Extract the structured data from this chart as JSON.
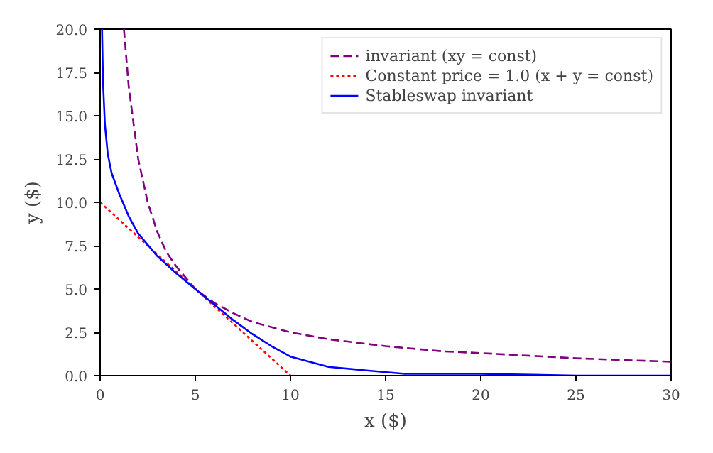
{
  "chart_data": {
    "type": "line",
    "xlabel": "x ($)",
    "ylabel": "y ($)",
    "xlim": [
      0,
      30
    ],
    "ylim": [
      0,
      20
    ],
    "xticks": [
      0,
      5,
      10,
      15,
      20,
      25,
      30
    ],
    "yticks": [
      {
        "value": 0,
        "label": "0.0"
      },
      {
        "value": 2.5,
        "label": "2.5"
      },
      {
        "value": 5,
        "label": "5.0"
      },
      {
        "value": 7.5,
        "label": "7.5"
      },
      {
        "value": 10,
        "label": "10.0"
      },
      {
        "value": 12.5,
        "label": "12.5"
      },
      {
        "value": 15,
        "label": "15.0"
      },
      {
        "value": 17.5,
        "label": "17.5"
      },
      {
        "value": 20,
        "label": "20.0"
      }
    ],
    "grid": false,
    "legend": "top right",
    "marker": "none",
    "series": [
      {
        "name": "invariant (xy = const)",
        "color": "#800080",
        "line_style": "dashed",
        "x": [
          1.25,
          1.5,
          2,
          2.5,
          3,
          3.5,
          4,
          5,
          6,
          7,
          8,
          10,
          12,
          15,
          18,
          20,
          25,
          30
        ],
        "values": [
          20,
          16.7,
          12.5,
          10,
          8.3,
          7.1,
          6.3,
          5,
          4.2,
          3.6,
          3.1,
          2.5,
          2.1,
          1.7,
          1.4,
          1.3,
          1,
          0.8
        ]
      },
      {
        "name": "Constant price = 1.0 (x + y = const)",
        "color": "#ff0000",
        "line_style": "dotted",
        "x": [
          0,
          10
        ],
        "values": [
          10,
          0
        ]
      },
      {
        "name": "Stableswap invariant",
        "color": "#0000ff",
        "line_style": "solid",
        "x": [
          0.1,
          0.15,
          0.25,
          0.4,
          0.6,
          1,
          1.5,
          2,
          3,
          4,
          5,
          6,
          7,
          8,
          9,
          10,
          11,
          12,
          14,
          16,
          20,
          25,
          30
        ],
        "values": [
          20,
          17,
          14.5,
          12.8,
          11.7,
          10.5,
          9.2,
          8.2,
          6.9,
          5.9,
          5,
          4.1,
          3.2,
          2.4,
          1.7,
          1.1,
          0.8,
          0.5,
          0.3,
          0.1,
          0.1,
          0,
          0
        ]
      }
    ]
  }
}
